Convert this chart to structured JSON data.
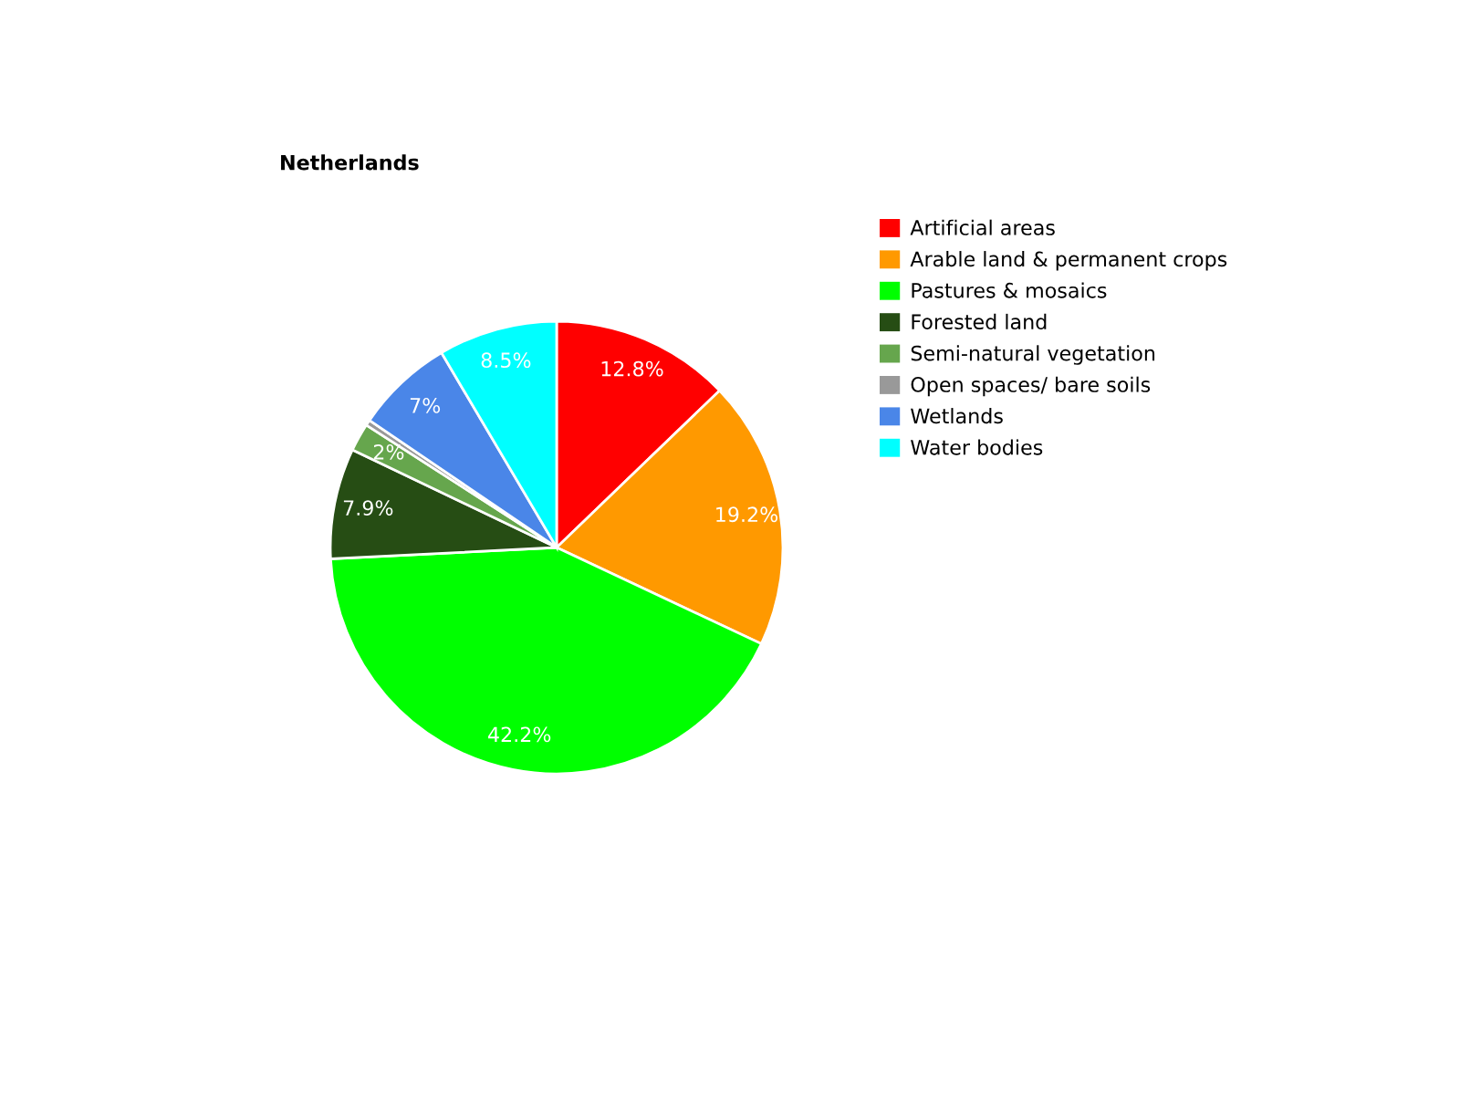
{
  "chart_data": {
    "type": "pie",
    "title": "Netherlands",
    "categories": [
      "Artificial areas",
      "Arable land & permanent crops",
      "Pastures & mosaics",
      "Forested land",
      "Semi-natural vegetation",
      "Open spaces/ bare soils",
      "Wetlands",
      "Water bodies"
    ],
    "values": [
      12.8,
      19.2,
      42.2,
      7.9,
      2,
      0.4,
      7,
      8.5
    ],
    "colors": [
      "#ff0000",
      "#ff9900",
      "#00ff00",
      "#264d14",
      "#66a64d",
      "#999999",
      "#4a86e8",
      "#00ffff"
    ],
    "value_labels": [
      "12.8%",
      "19.2%",
      "42.2%",
      "7.9%",
      "2%",
      null,
      "7%",
      "8.5%"
    ],
    "legend": "right"
  }
}
